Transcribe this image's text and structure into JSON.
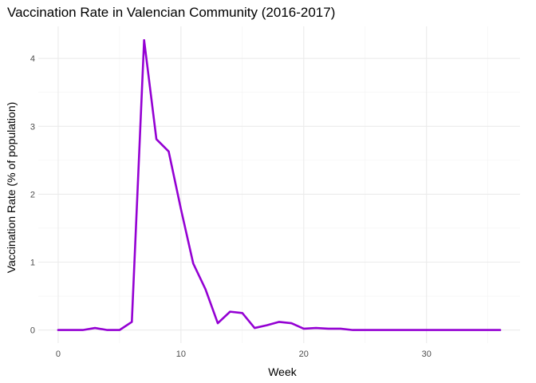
{
  "chart_data": {
    "type": "line",
    "title": "Vaccination Rate in Valencian Community (2016-2017)",
    "xlabel": "Week",
    "ylabel": "Vaccination Rate (% of population)",
    "xlim": [
      0,
      36
    ],
    "ylim": [
      0,
      4.28
    ],
    "x_ticks": [
      0,
      10,
      20,
      30
    ],
    "y_ticks": [
      0,
      1,
      2,
      3,
      4
    ],
    "grid": true,
    "line_color": "#9400D3",
    "series": [
      {
        "x": [
          0,
          1,
          2,
          3,
          4,
          5,
          6,
          7,
          8,
          9,
          10,
          11,
          12,
          13,
          14,
          15,
          16,
          17,
          18,
          19,
          20,
          21,
          22,
          23,
          24,
          25,
          26,
          27,
          28,
          29,
          30,
          31,
          32,
          33,
          34,
          35,
          36
        ],
        "values": [
          0,
          0,
          0,
          0.03,
          0,
          0,
          0.12,
          4.27,
          2.81,
          2.63,
          1.78,
          0.98,
          0.6,
          0.1,
          0.27,
          0.25,
          0.03,
          0.07,
          0.12,
          0.1,
          0.02,
          0.03,
          0.02,
          0.02,
          0,
          0,
          0,
          0,
          0,
          0,
          0,
          0,
          0,
          0,
          0,
          0,
          0
        ]
      }
    ]
  }
}
